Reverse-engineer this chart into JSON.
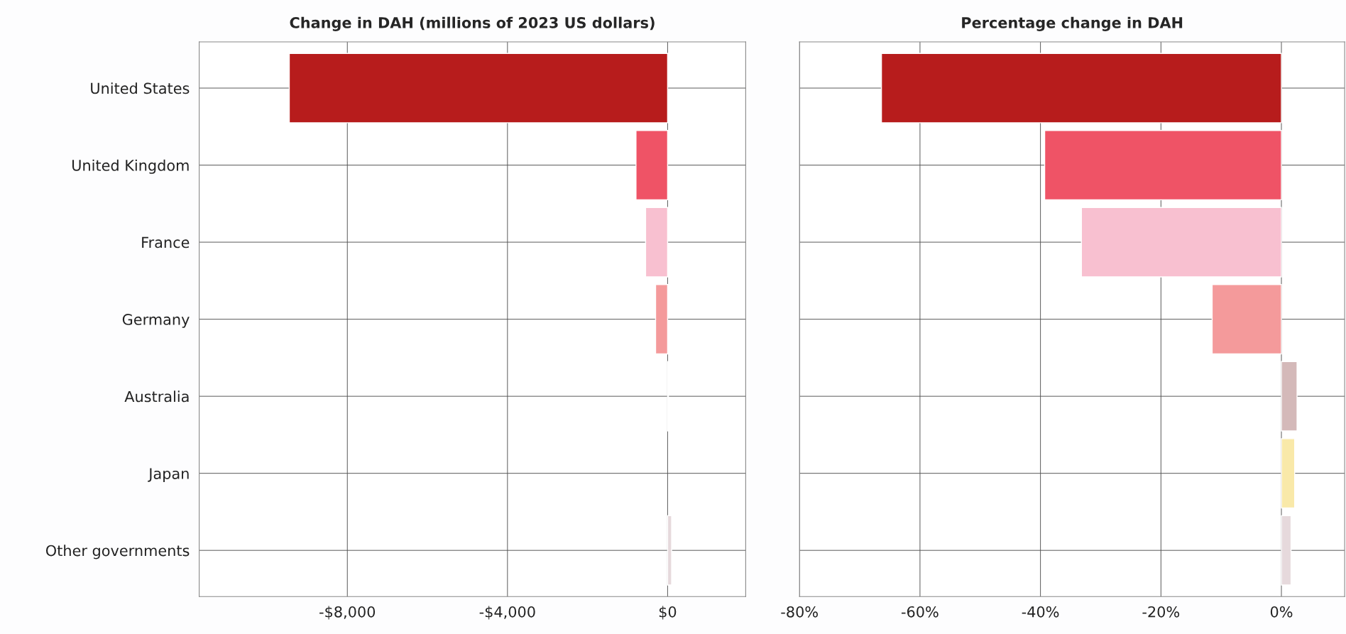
{
  "chart_data": [
    {
      "type": "bar",
      "orientation": "horizontal",
      "title": "Change in DAH (millions of 2023 US dollars)",
      "categories": [
        "United States",
        "United Kingdom",
        "France",
        "Germany",
        "Australia",
        "Japan",
        "Other governments"
      ],
      "values": [
        -9450,
        -790,
        -550,
        -300,
        20,
        null,
        100
      ],
      "colors": [
        "#b71c1c",
        "#ef5366",
        "#f8c0d0",
        "#f49a9b",
        "#d4b9b9",
        "#f9e9a9",
        "#e6d9dc"
      ],
      "xlim": [
        -11700,
        1950
      ],
      "xticks": [
        {
          "value": -8000,
          "label": "-$8,000"
        },
        {
          "value": -4000,
          "label": "-$4,000"
        },
        {
          "value": 0,
          "label": "$0"
        }
      ],
      "grid": true
    },
    {
      "type": "bar",
      "orientation": "horizontal",
      "title": "Percentage change in DAH",
      "categories": [
        null,
        null,
        null,
        null,
        null,
        null,
        null
      ],
      "values": [
        -66.4,
        -39.3,
        -33.2,
        -11.5,
        2.6,
        2.2,
        1.6
      ],
      "colors": [
        "#b71c1c",
        "#ef5366",
        "#f8c0d0",
        "#f49a9b",
        "#d4b9b9",
        "#f9e9a9",
        "#e6d9dc"
      ],
      "xlim": [
        -80,
        10.5
      ],
      "xticks": [
        {
          "value": -80,
          "label": "-80%"
        },
        {
          "value": -60,
          "label": "-60%"
        },
        {
          "value": -40,
          "label": "-40%"
        },
        {
          "value": -20,
          "label": "-20%"
        },
        {
          "value": 0,
          "label": "0%"
        }
      ],
      "grid": true,
      "tick_labels": "x"
    }
  ]
}
